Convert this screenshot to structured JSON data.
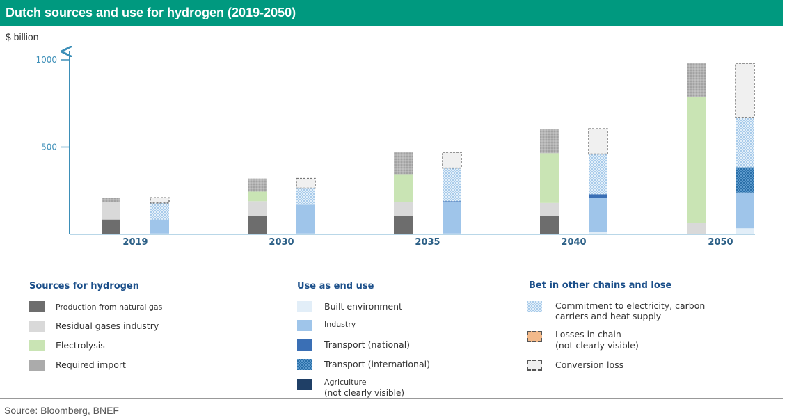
{
  "title": "Dutch sources and use for hydrogen (2019-2050)",
  "unit_label": "$ billion",
  "source": "Source: Bloomberg, BNEF",
  "colors": {
    "title_bg": "#00997f",
    "natural_gas": "#6d6d6d",
    "residual_gases": "#d9d9d9",
    "electrolysis": "#c9e4b4",
    "required_import": "#ababab",
    "built_environment": "#e2eef8",
    "industry": "#9fc5ea",
    "transport_national": "#3a6fb5",
    "transport_international": "#2a6fa8",
    "agriculture": "#1f3f66",
    "commitment": "#c8dff2",
    "losses": "#f2b98a",
    "conversion": "#f0f0f0",
    "axis": "#3d8fb8"
  },
  "chart_data": {
    "type": "bar",
    "stacked": true,
    "categories": [
      "2019",
      "2030",
      "2035",
      "2040",
      "2050"
    ],
    "y_ticks": [
      "1000",
      "500"
    ],
    "ylim": [
      0,
      1000
    ],
    "sources_bars": [
      {
        "year": "2019",
        "segments": [
          {
            "name": "Production from natural gas",
            "value": 85
          },
          {
            "name": "Residual gases industry",
            "value": 100
          },
          {
            "name": "Electrolysis",
            "value": 0
          },
          {
            "name": "Required import",
            "value": 25
          }
        ]
      },
      {
        "year": "2030",
        "segments": [
          {
            "name": "Production from natural gas",
            "value": 105
          },
          {
            "name": "Residual gases industry",
            "value": 85
          },
          {
            "name": "Electrolysis",
            "value": 55
          },
          {
            "name": "Required import",
            "value": 75
          }
        ]
      },
      {
        "year": "2035",
        "segments": [
          {
            "name": "Production from natural gas",
            "value": 105
          },
          {
            "name": "Residual gases industry",
            "value": 80
          },
          {
            "name": "Electrolysis",
            "value": 160
          },
          {
            "name": "Required import",
            "value": 125
          }
        ]
      },
      {
        "year": "2040",
        "segments": [
          {
            "name": "Production from natural gas",
            "value": 105
          },
          {
            "name": "Residual gases industry",
            "value": 75
          },
          {
            "name": "Electrolysis",
            "value": 285
          },
          {
            "name": "Required import",
            "value": 140
          }
        ]
      },
      {
        "year": "2050",
        "segments": [
          {
            "name": "Production from natural gas",
            "value": 0
          },
          {
            "name": "Residual gases industry",
            "value": 65
          },
          {
            "name": "Electrolysis",
            "value": 720
          },
          {
            "name": "Required import",
            "value": 195
          }
        ]
      }
    ],
    "use_bars": [
      {
        "year": "2019",
        "segments": [
          {
            "name": "Built environment",
            "value": 5
          },
          {
            "name": "Industry",
            "value": 80
          },
          {
            "name": "Transport (national)",
            "value": 0
          },
          {
            "name": "Transport (international)",
            "value": 0
          },
          {
            "name": "Commitment to electricity, carbon carriers and heat supply",
            "value": 95
          },
          {
            "name": "Conversion loss",
            "value": 30
          }
        ]
      },
      {
        "year": "2030",
        "segments": [
          {
            "name": "Built environment",
            "value": 5
          },
          {
            "name": "Industry",
            "value": 165
          },
          {
            "name": "Transport (national)",
            "value": 0
          },
          {
            "name": "Transport (international)",
            "value": 0
          },
          {
            "name": "Commitment to electricity, carbon carriers and heat supply",
            "value": 95
          },
          {
            "name": "Conversion loss",
            "value": 55
          }
        ]
      },
      {
        "year": "2035",
        "segments": [
          {
            "name": "Built environment",
            "value": 5
          },
          {
            "name": "Industry",
            "value": 180
          },
          {
            "name": "Transport (national)",
            "value": 5
          },
          {
            "name": "Transport (international)",
            "value": 0
          },
          {
            "name": "Commitment to electricity, carbon carriers and heat supply",
            "value": 190
          },
          {
            "name": "Conversion loss",
            "value": 90
          }
        ]
      },
      {
        "year": "2040",
        "segments": [
          {
            "name": "Built environment",
            "value": 15
          },
          {
            "name": "Industry",
            "value": 195
          },
          {
            "name": "Transport (national)",
            "value": 20
          },
          {
            "name": "Transport (international)",
            "value": 0
          },
          {
            "name": "Commitment to electricity, carbon carriers and heat supply",
            "value": 230
          },
          {
            "name": "Conversion loss",
            "value": 145
          }
        ]
      },
      {
        "year": "2050",
        "segments": [
          {
            "name": "Built environment",
            "value": 35
          },
          {
            "name": "Industry",
            "value": 205
          },
          {
            "name": "Transport (national)",
            "value": 0
          },
          {
            "name": "Transport (international)",
            "value": 145
          },
          {
            "name": "Commitment to electricity, carbon carriers and heat supply",
            "value": 285
          },
          {
            "name": "Conversion loss",
            "value": 310
          }
        ]
      }
    ]
  },
  "legend": {
    "sources": {
      "title": "Sources for hydrogen",
      "items": [
        {
          "label": "Production from natural gas",
          "color": "#6d6d6d"
        },
        {
          "label": "Residual gases industry",
          "color": "#d9d9d9"
        },
        {
          "label": "Electrolysis",
          "color": "#c9e4b4"
        },
        {
          "label": "Required import",
          "color": "#ababab"
        }
      ]
    },
    "uses": {
      "title": "Use as end use",
      "items": [
        {
          "label": "Built environment"
        },
        {
          "label": "Industry"
        },
        {
          "label": "Transport (national)"
        },
        {
          "label": "Transport (international)"
        },
        {
          "label_line1": "Agriculture",
          "label_line2": "(not clearly visible)"
        }
      ]
    },
    "other": {
      "title": "Bet in other chains and lose",
      "items": [
        {
          "label_line1": "Commitment to electricity, carbon",
          "label_line2": "carriers and heat supply"
        },
        {
          "label_line1": "Losses in chain",
          "label_line2": "(not clearly visible)"
        },
        {
          "label": "Conversion loss"
        }
      ]
    }
  }
}
